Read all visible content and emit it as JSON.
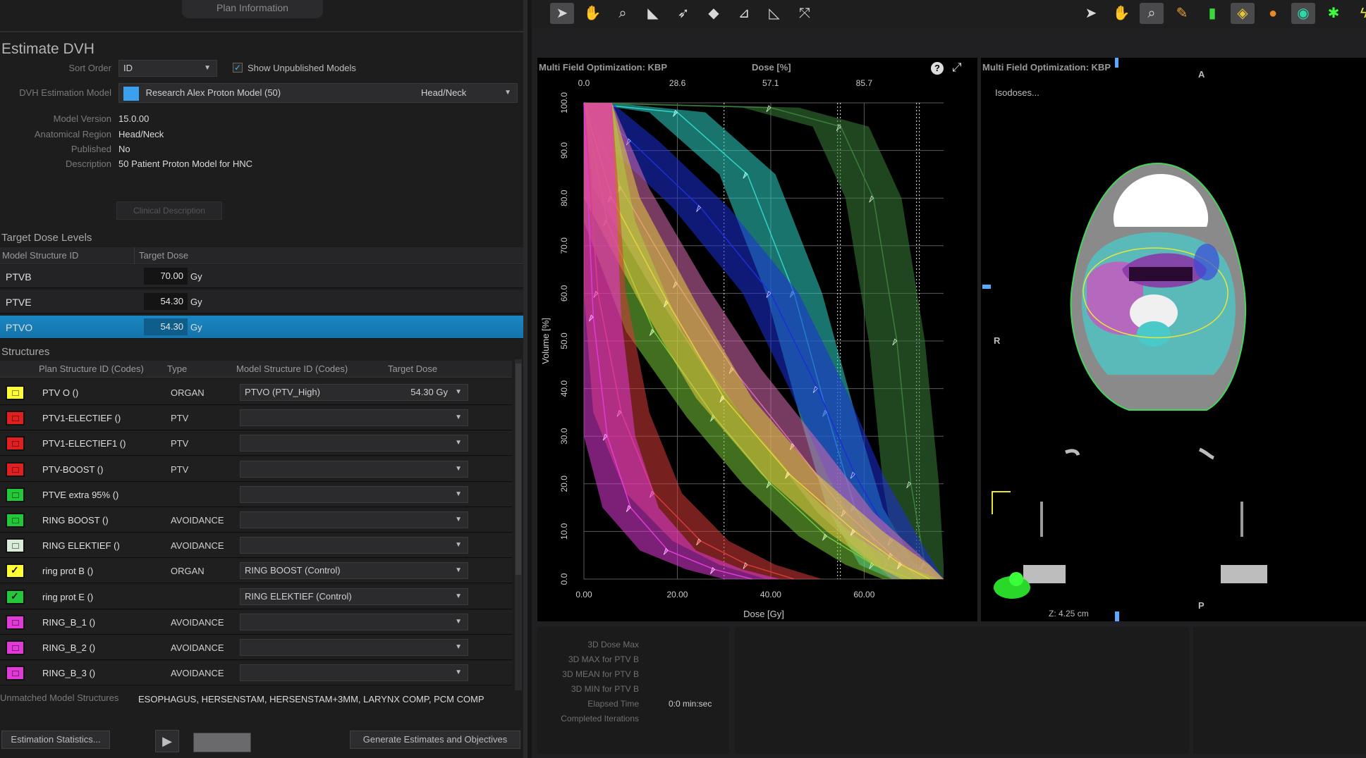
{
  "plan_tab": "Plan Information",
  "estimate": {
    "title": "Estimate DVH",
    "sort_order_label": "Sort Order",
    "sort_order_value": "ID",
    "show_unpublished_label": "Show Unpublished Models",
    "model_label": "DVH Estimation Model",
    "model_value": "Research Alex Proton Model (50)",
    "model_region": "Head/Neck",
    "model_version_label": "Model Version",
    "model_version": "15.0.00",
    "anatomical_region_label": "Anatomical Region",
    "anatomical_region": "Head/Neck",
    "published_label": "Published",
    "published": "No",
    "description_label": "Description",
    "description": "50 Patient Proton Model for HNC",
    "clinical_desc_button": "Clinical Description"
  },
  "target_dose": {
    "title": "Target Dose Levels",
    "col_id": "Model Structure ID",
    "col_dose": "Target Dose",
    "rows": [
      {
        "name": "PTVB",
        "dose": "70.00",
        "unit": "Gy"
      },
      {
        "name": "PTVE",
        "dose": "54.30",
        "unit": "Gy"
      },
      {
        "name": "PTVO",
        "dose": "54.30",
        "unit": "Gy"
      }
    ]
  },
  "structures": {
    "title": "Structures",
    "col_plan": "Plan Structure ID (Codes)",
    "col_type": "Type",
    "col_model": "Model Structure ID (Codes)",
    "col_dose": "Target Dose",
    "rows": [
      {
        "id": "PTV O ()",
        "type": "ORGAN",
        "model": "PTVO (PTV_High)",
        "dose": "54.30 Gy",
        "color": "#ffff33",
        "checked": false
      },
      {
        "id": "PTV1-ELECTIEF ()",
        "type": "PTV",
        "model": "",
        "dose": "",
        "color": "#e02020",
        "checked": false
      },
      {
        "id": "PTV1-ELECTIEF1 ()",
        "type": "PTV",
        "model": "",
        "dose": "",
        "color": "#e02020",
        "checked": false
      },
      {
        "id": "PTV-BOOST ()",
        "type": "PTV",
        "model": "",
        "dose": "",
        "color": "#e02020",
        "checked": false
      },
      {
        "id": "PTVE extra 95% ()",
        "type": "",
        "model": "",
        "dose": "",
        "color": "#22c83a",
        "checked": false
      },
      {
        "id": "RING BOOST ()",
        "type": "AVOIDANCE",
        "model": "",
        "dose": "",
        "color": "#22c83a",
        "checked": false
      },
      {
        "id": "RING ELEKTIEF ()",
        "type": "AVOIDANCE",
        "model": "",
        "dose": "",
        "color": "#d8ecd8",
        "checked": false
      },
      {
        "id": "ring prot B ()",
        "type": "ORGAN",
        "model": "RING BOOST (Control)",
        "dose": "",
        "color": "#ffff33",
        "checked": true
      },
      {
        "id": "ring prot E ()",
        "type": "",
        "model": "RING ELEKTIEF (Control)",
        "dose": "",
        "color": "#22c83a",
        "checked": true
      },
      {
        "id": "RING_B_1 ()",
        "type": "AVOIDANCE",
        "model": "",
        "dose": "",
        "color": "#e23ad8",
        "checked": false
      },
      {
        "id": "RING_B_2 ()",
        "type": "AVOIDANCE",
        "model": "",
        "dose": "",
        "color": "#e23ad8",
        "checked": false
      },
      {
        "id": "RING_B_3 ()",
        "type": "AVOIDANCE",
        "model": "",
        "dose": "",
        "color": "#e23ad8",
        "checked": false
      }
    ]
  },
  "unmatched": {
    "label": "Unmatched Model Structures",
    "value": "ESOPHAGUS, HERSENSTAM, HERSENSTAM+3MM, LARYNX COMP, PCM COMP"
  },
  "bottom_buttons": {
    "stats": "Estimation Statistics...",
    "generate": "Generate Estimates and Objectives"
  },
  "dvh_view": {
    "title": "Multi Field Optimization: KBP",
    "top_axis_title": "Dose [%]",
    "top_ticks": [
      "0.0",
      "28.6",
      "57.1",
      "85.7"
    ],
    "help": "?"
  },
  "chart_data": {
    "type": "area",
    "xlabel": "Dose [Gy]",
    "ylabel": "Volume [%]",
    "xlim": [
      0,
      77
    ],
    "ylim": [
      0,
      100
    ],
    "x_ticks": [
      "0.00",
      "20.00",
      "40.00",
      "60.00"
    ],
    "y_ticks": [
      "0.0",
      "10.0",
      "20.0",
      "30.0",
      "40.0",
      "50.0",
      "60.0",
      "70.0",
      "80.0",
      "90.0",
      "100.0"
    ],
    "grid": true,
    "series": [
      {
        "color": "#2fd3c8",
        "points": [
          [
            0,
            100
          ],
          [
            20,
            98
          ],
          [
            35,
            85
          ],
          [
            45,
            60
          ],
          [
            52,
            35
          ],
          [
            58,
            15
          ],
          [
            65,
            3
          ],
          [
            72,
            0
          ]
        ]
      },
      {
        "color": "#3a7f3a",
        "points": [
          [
            0,
            100
          ],
          [
            40,
            99
          ],
          [
            55,
            95
          ],
          [
            62,
            80
          ],
          [
            67,
            50
          ],
          [
            70,
            20
          ],
          [
            73,
            3
          ],
          [
            75,
            0
          ]
        ]
      },
      {
        "color": "#1b2fd8",
        "points": [
          [
            0,
            100
          ],
          [
            10,
            92
          ],
          [
            25,
            78
          ],
          [
            40,
            60
          ],
          [
            50,
            40
          ],
          [
            58,
            22
          ],
          [
            66,
            8
          ],
          [
            72,
            0
          ]
        ]
      },
      {
        "color": "#d86ab0",
        "points": [
          [
            0,
            100
          ],
          [
            8,
            82
          ],
          [
            20,
            62
          ],
          [
            32,
            44
          ],
          [
            45,
            28
          ],
          [
            56,
            14
          ],
          [
            66,
            5
          ],
          [
            72,
            0
          ]
        ]
      },
      {
        "color": "#78c83a",
        "points": [
          [
            0,
            100
          ],
          [
            5,
            75
          ],
          [
            15,
            52
          ],
          [
            28,
            34
          ],
          [
            40,
            20
          ],
          [
            52,
            9
          ],
          [
            62,
            3
          ],
          [
            70,
            0
          ]
        ]
      },
      {
        "color": "#e8d040",
        "points": [
          [
            0,
            100
          ],
          [
            6,
            80
          ],
          [
            18,
            58
          ],
          [
            30,
            38
          ],
          [
            44,
            22
          ],
          [
            58,
            10
          ],
          [
            68,
            3
          ],
          [
            74,
            0
          ]
        ]
      },
      {
        "color": "#d83a3a",
        "points": [
          [
            0,
            100
          ],
          [
            3,
            60
          ],
          [
            8,
            35
          ],
          [
            15,
            18
          ],
          [
            25,
            8
          ],
          [
            35,
            3
          ],
          [
            45,
            0
          ]
        ]
      },
      {
        "color": "#e23ad8",
        "points": [
          [
            0,
            100
          ],
          [
            2,
            55
          ],
          [
            5,
            30
          ],
          [
            10,
            15
          ],
          [
            18,
            6
          ],
          [
            28,
            2
          ],
          [
            36,
            0
          ]
        ]
      }
    ]
  },
  "ct_view": {
    "title": "Multi Field Optimization: KBP",
    "isodoses": "Isodoses...",
    "orient_a": "A",
    "orient_r": "R",
    "orient_p": "P",
    "z": "Z: 4.25 cm"
  },
  "stats": {
    "rows": [
      {
        "label": "3D Dose Max",
        "value": ""
      },
      {
        "label": "3D MAX for PTV B",
        "value": ""
      },
      {
        "label": "3D MEAN for PTV B",
        "value": ""
      },
      {
        "label": "3D MIN for PTV B",
        "value": ""
      },
      {
        "label": "Elapsed Time",
        "value": "0:0  min:sec"
      },
      {
        "label": "Completed Iterations",
        "value": ""
      }
    ]
  },
  "toolbar_icons": [
    "pointer-icon",
    "pan-hand-icon",
    "zoom-icon",
    "beam-arrow-icon",
    "direction-arrow-icon",
    "diamond-icon",
    "dose-profile-icon",
    "dose-profile-alt-icon",
    "fit-to-window-icon"
  ],
  "toolbar_right_icons": [
    "pointer-icon",
    "pan-hand-icon",
    "zoom-icon",
    "brush-icon",
    "window-level-icon",
    "layer-icon",
    "structure-icon",
    "eye-icon",
    "figure-icon",
    "bolt-icon"
  ]
}
